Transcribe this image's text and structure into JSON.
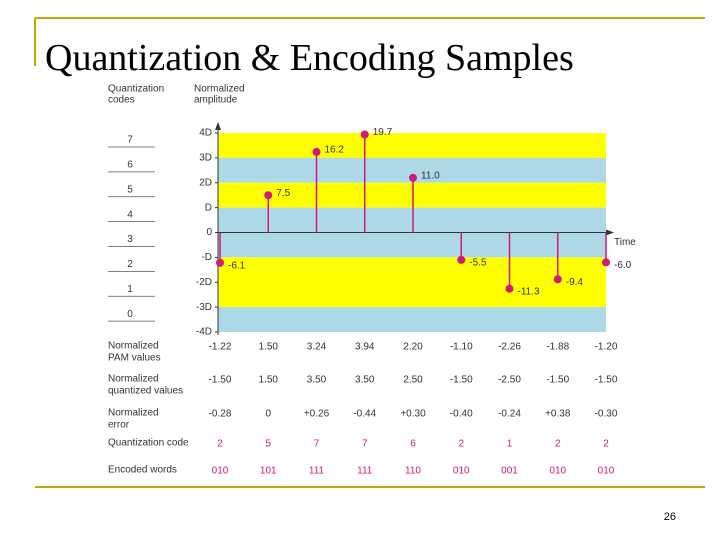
{
  "title": "Quantization & Encoding Samples",
  "page_number": "26",
  "chart_data": {
    "type": "stem",
    "code_axis_title": [
      "Quantization",
      "codes"
    ],
    "y_axis_title": [
      "Normalized",
      "amplitude"
    ],
    "x_axis_title": "Time",
    "codes": [
      "7",
      "6",
      "5",
      "4",
      "3",
      "2",
      "1",
      "0"
    ],
    "ylim": [
      -20,
      20
    ],
    "yticks": [
      {
        "value": 20,
        "label": "4D"
      },
      {
        "value": 15,
        "label": "3D"
      },
      {
        "value": 10,
        "label": "2D"
      },
      {
        "value": 5,
        "label": "D"
      },
      0,
      {
        "value": -5,
        "label": "-D"
      },
      {
        "value": -10,
        "label": "-2D"
      },
      {
        "value": -15,
        "label": "-3D"
      },
      {
        "value": -20,
        "label": "-4D"
      }
    ],
    "band_colors": [
      "#ffff00",
      "#add8e6",
      "#ffff00",
      "#add8e6",
      "#add8e6",
      "#ffff00",
      "#ffff00",
      "#add8e6"
    ],
    "color": "#d6177a",
    "values": [
      -6.1,
      7.5,
      16.2,
      19.7,
      11.0,
      -5.5,
      -11.3,
      -9.4,
      -6.0
    ],
    "value_labels": [
      "-6.1",
      "7.5",
      "16.2",
      "19.7",
      "11.0",
      "-5.5",
      "-11.3",
      "-9.4",
      "-6.0"
    ]
  },
  "table": {
    "rows": [
      {
        "label": [
          "Normalized",
          "PAM values"
        ],
        "cells": [
          "-1.22",
          "1.50",
          "3.24",
          "3.94",
          "2.20",
          "-1.10",
          "-2.26",
          "-1.88",
          "-1.20"
        ]
      },
      {
        "label": [
          "Normalized",
          "quantized values"
        ],
        "cells": [
          "-1.50",
          "1.50",
          "3.50",
          "3.50",
          "2.50",
          "-1.50",
          "-2.50",
          "-1.50",
          "-1.50"
        ]
      },
      {
        "label": [
          "Normalized",
          "error"
        ],
        "cells": [
          "-0.28",
          "0",
          "+0.26",
          "-0.44",
          "+0.30",
          "-0.40",
          "-0.24",
          "+0.38",
          "-0.30"
        ]
      },
      {
        "label": [
          "Quantization code"
        ],
        "cells": [
          "2",
          "5",
          "7",
          "7",
          "6",
          "2",
          "1",
          "2",
          "2"
        ]
      },
      {
        "label": [
          "Encoded words"
        ],
        "cells": [
          "010",
          "101",
          "111",
          "111",
          "110",
          "010",
          "001",
          "010",
          "010"
        ]
      }
    ]
  }
}
